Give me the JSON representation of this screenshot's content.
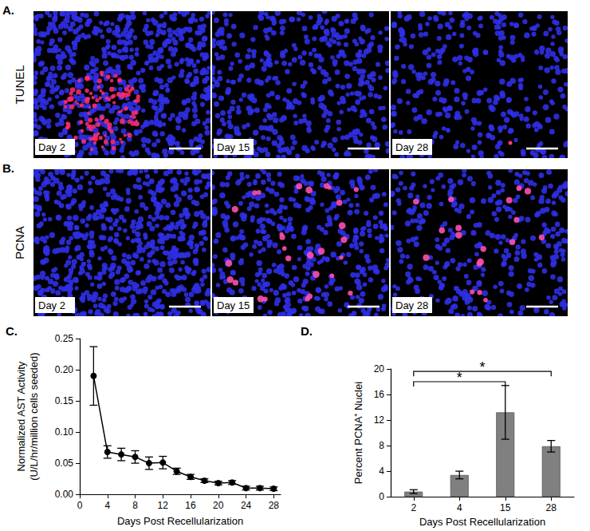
{
  "image_rows": [
    {
      "panel_label": "A.",
      "stain": "TUNEL",
      "captions": [
        "Day 2",
        "Day 15",
        "Day 28"
      ]
    },
    {
      "panel_label": "B.",
      "stain": "PCNA",
      "captions": [
        "Day 2",
        "Day 15",
        "Day 28"
      ]
    }
  ],
  "chart_data": [
    {
      "type": "line",
      "panel_label": "C.",
      "x_label": "Days Post Recellularization",
      "y_label": "Normalized AST Activity\n(U/L/hr/million cells seeded)",
      "x": [
        2,
        4,
        6,
        8,
        10,
        12,
        14,
        16,
        18,
        20,
        22,
        24,
        26,
        28
      ],
      "values": [
        0.19,
        0.068,
        0.064,
        0.06,
        0.05,
        0.051,
        0.037,
        0.028,
        0.022,
        0.018,
        0.019,
        0.01,
        0.01,
        0.009
      ],
      "errors": [
        0.047,
        0.01,
        0.01,
        0.01,
        0.01,
        0.01,
        0.005,
        0.004,
        0.003,
        0.003,
        0.003,
        0.003,
        0.003,
        0.003
      ],
      "color": "#000000",
      "marker": "circle",
      "xlim": [
        0,
        29
      ],
      "xticks": [
        0,
        4,
        8,
        12,
        16,
        20,
        24,
        28
      ],
      "ylim": [
        0,
        0.25
      ],
      "yticks": [
        {
          "value": 0,
          "label": "0.00"
        },
        {
          "value": 0.05,
          "label": "0.05"
        },
        {
          "value": 0.1,
          "label": "0.10"
        },
        {
          "value": 0.15,
          "label": "0.15"
        },
        {
          "value": 0.2,
          "label": "0.20"
        },
        {
          "value": 0.25,
          "label": "0.25"
        }
      ],
      "grid": false
    },
    {
      "type": "bar",
      "panel_label": "D.",
      "x_label": "Days Post Recellularization",
      "y_label": "Percent PCNA⁺ Nuclei",
      "categories": [
        "2",
        "4",
        "15",
        "28"
      ],
      "values": [
        0.8,
        3.4,
        13.2,
        7.9
      ],
      "errors": [
        0.3,
        0.6,
        4.2,
        0.9
      ],
      "color": "#808080",
      "ylim": [
        0,
        20
      ],
      "yticks": [
        0,
        4,
        8,
        12,
        16,
        20
      ],
      "grid": false,
      "annotations": [
        {
          "from": "2",
          "to": "15",
          "label": "*"
        },
        {
          "from": "2",
          "to": "28",
          "label": "*"
        }
      ]
    }
  ]
}
